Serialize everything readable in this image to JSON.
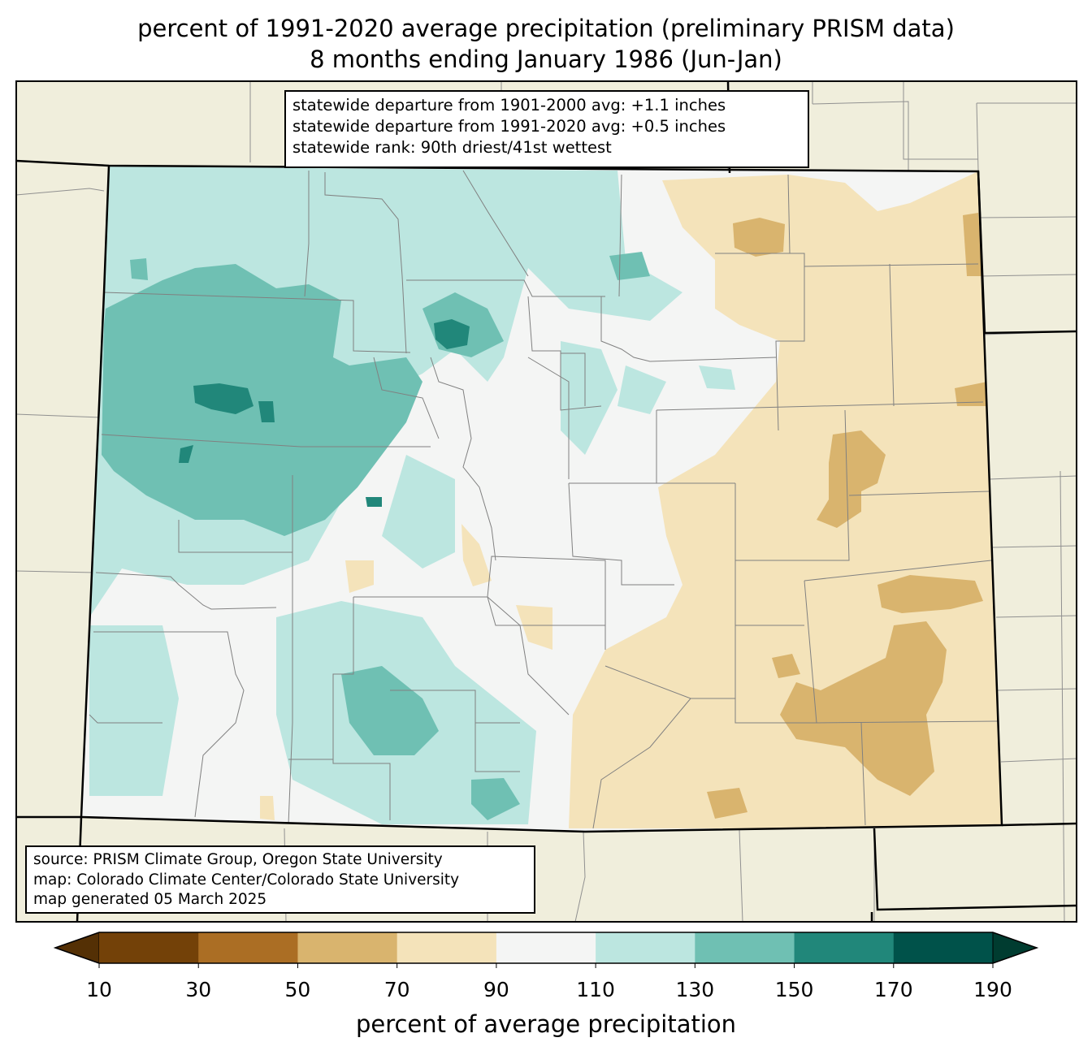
{
  "title": {
    "line1": "percent of 1991-2020 average precipitation (preliminary PRISM data)",
    "line2": "8 months ending January 1986 (Jun-Jan)"
  },
  "stats": {
    "line1": "statewide departure from 1901-2000 avg: +1.1 inches",
    "line2": "statewide departure from 1991-2020 avg: +0.5 inches",
    "line3": "statewide rank: 90th driest/41st wettest"
  },
  "source": {
    "line1": "source: PRISM Climate Group, Oregon State University",
    "line2": "map: Colorado Climate Center/Colorado State University",
    "line3": "map generated 05 March 2025"
  },
  "colorbar": {
    "label": "percent of average precipitation",
    "ticks": [
      "10",
      "30",
      "50",
      "70",
      "90",
      "110",
      "130",
      "150",
      "170",
      "190"
    ],
    "colors": [
      "#734108",
      "#ab6e24",
      "#d9b46e",
      "#f4e3ba",
      "#f4f5f4",
      "#bce6e0",
      "#6fc0b3",
      "#21877a",
      "#00524a"
    ],
    "under_color": "#543005",
    "over_color": "#003c30"
  },
  "colors": {
    "background": "#f0eedc",
    "state_border": "#000000",
    "county_border": "#808080"
  }
}
